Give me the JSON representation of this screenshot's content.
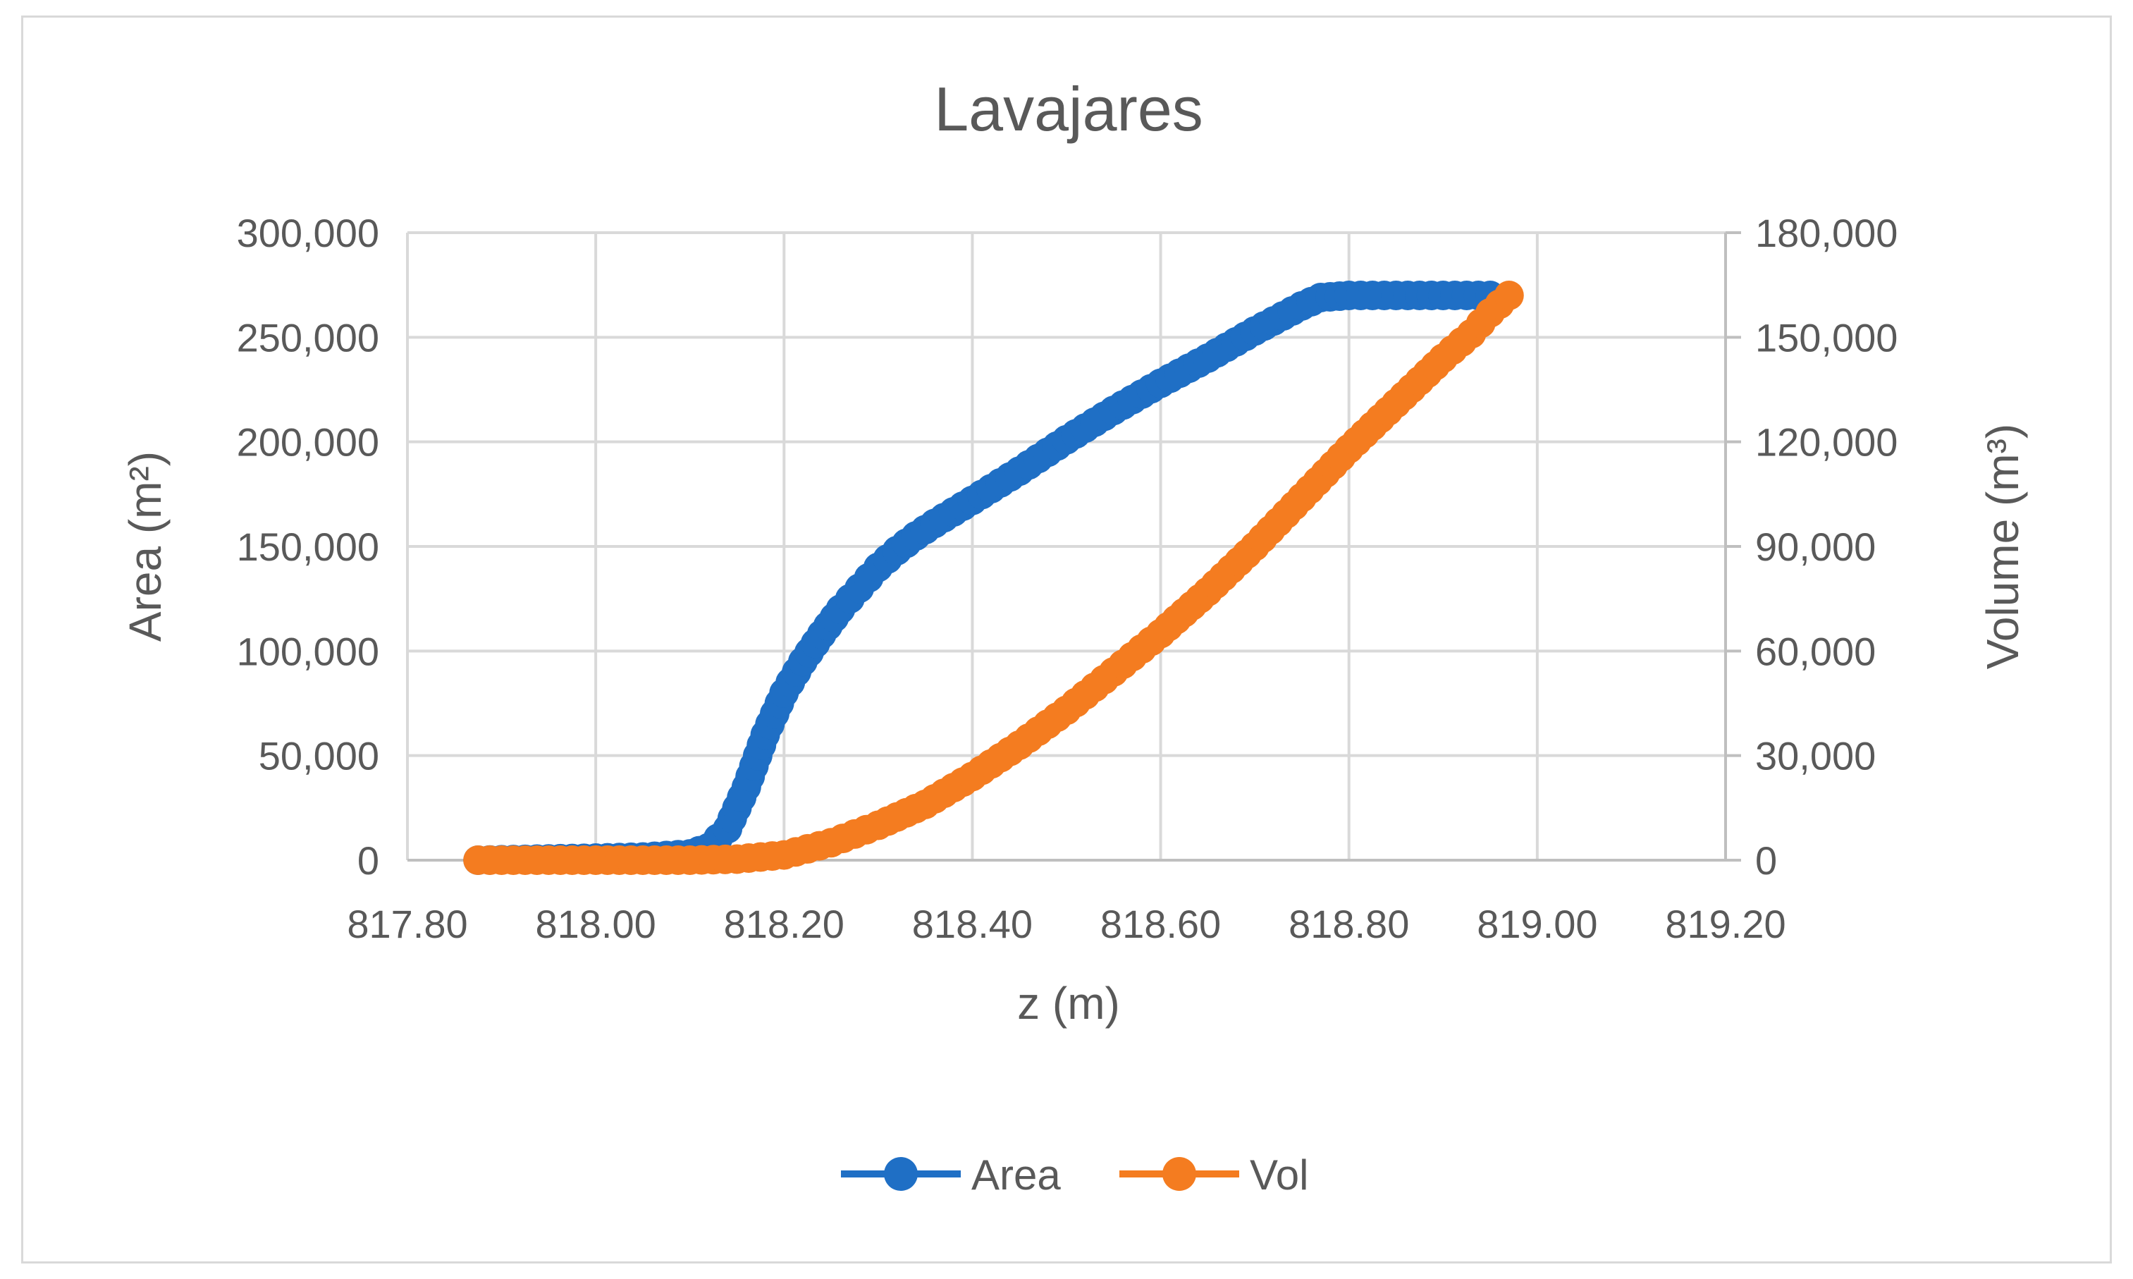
{
  "chart_data": {
    "type": "line",
    "title": "Lavajares",
    "xlabel": "z (m)",
    "ylabel": "Area (m²)",
    "y2label": "Volume (m³)",
    "xlim": [
      817.8,
      819.2
    ],
    "ylim": [
      0,
      300000
    ],
    "y2lim": [
      0,
      180000
    ],
    "x_ticks": [
      "817.80",
      "818.00",
      "818.20",
      "818.40",
      "818.60",
      "818.80",
      "819.00",
      "819.20"
    ],
    "y_ticks": [
      "0",
      "50,000",
      "100,000",
      "150,000",
      "200,000",
      "250,000",
      "300,000"
    ],
    "y2_ticks": [
      "0",
      "30,000",
      "60,000",
      "90,000",
      "120,000",
      "150,000",
      "180,000"
    ],
    "grid": true,
    "legend_position": "bottom",
    "series": [
      {
        "name": "Area",
        "axis": "left",
        "color": "#1f6fc5",
        "x": [
          817.875,
          818.0,
          818.05,
          818.1,
          818.12,
          818.14,
          818.16,
          818.18,
          818.2,
          818.22,
          818.24,
          818.26,
          818.28,
          818.3,
          818.32,
          818.34,
          818.36,
          818.4,
          818.45,
          818.5,
          818.55,
          818.6,
          818.65,
          818.7,
          818.75,
          818.77,
          818.8,
          818.85,
          818.9,
          818.95
        ],
        "values": [
          0,
          1000,
          1500,
          3000,
          6000,
          15000,
          35000,
          60000,
          80000,
          95000,
          108000,
          120000,
          130000,
          140000,
          148000,
          155000,
          161000,
          172000,
          186000,
          201000,
          215000,
          228000,
          240000,
          253000,
          265000,
          269000,
          270000,
          270000,
          270000,
          270000
        ]
      },
      {
        "name": "Vol",
        "axis": "right",
        "color": "#f47c20",
        "x": [
          817.875,
          818.0,
          818.1,
          818.15,
          818.2,
          818.25,
          818.3,
          818.35,
          818.4,
          818.45,
          818.5,
          818.55,
          818.6,
          818.65,
          818.7,
          818.75,
          818.8,
          818.85,
          818.9,
          818.93,
          818.95,
          818.97
        ],
        "values": [
          0,
          0,
          0,
          300,
          1500,
          5000,
          10000,
          16000,
          24000,
          33000,
          43000,
          54000,
          65000,
          77000,
          90000,
          104000,
          118000,
          131000,
          144000,
          151000,
          157000,
          162000
        ]
      }
    ]
  }
}
